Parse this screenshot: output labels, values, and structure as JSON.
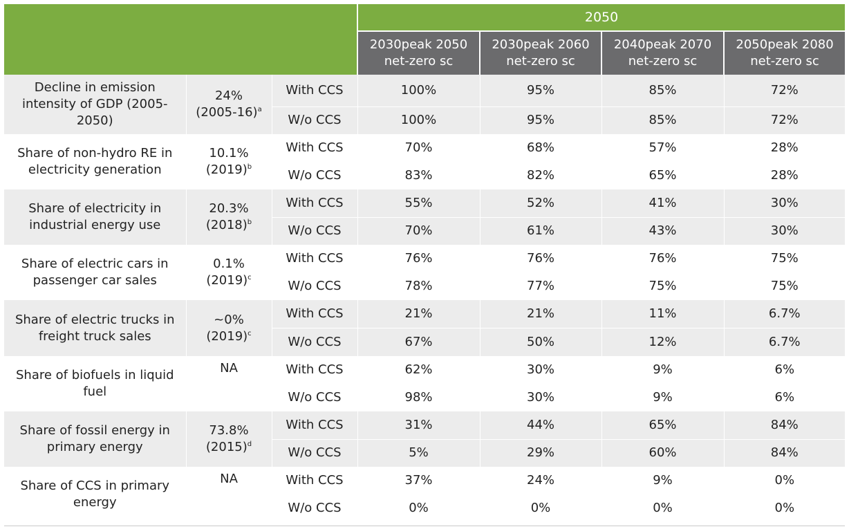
{
  "header": {
    "group_label": "2050",
    "scenarios": [
      {
        "line1": "2030peak 2050",
        "line2": "net-zero sc"
      },
      {
        "line1": "2030peak 2060",
        "line2": "net-zero sc"
      },
      {
        "line1": "2040peak 2070",
        "line2": "net-zero sc"
      },
      {
        "line1": "2050peak 2080",
        "line2": "net-zero sc"
      }
    ]
  },
  "rows": [
    {
      "indicator": "Decline in emission intensity of GDP (2005-2050)",
      "base_value": "24%",
      "base_year": "(2005-16)",
      "base_note": "a",
      "with_label": "With CCS",
      "without_label": "W/o CCS",
      "with_ccs": [
        "100%",
        "95%",
        "85%",
        "72%"
      ],
      "without_ccs": [
        "100%",
        "95%",
        "85%",
        "72%"
      ]
    },
    {
      "indicator": "Share of non-hydro RE in electricity generation",
      "base_value": "10.1%",
      "base_year": "(2019)",
      "base_note": "b",
      "with_label": "With CCS",
      "without_label": "W/o CCS",
      "with_ccs": [
        "70%",
        "68%",
        "57%",
        "28%"
      ],
      "without_ccs": [
        "83%",
        "82%",
        "65%",
        "28%"
      ]
    },
    {
      "indicator": "Share of electricity in industrial energy use",
      "base_value": "20.3%",
      "base_year": "(2018)",
      "base_note": "b",
      "with_label": "With CCS",
      "without_label": "W/o CCS",
      "with_ccs": [
        "55%",
        "52%",
        "41%",
        "30%"
      ],
      "without_ccs": [
        "70%",
        "61%",
        "43%",
        "30%"
      ]
    },
    {
      "indicator": "Share of electric cars in passenger car sales",
      "base_value": "0.1%",
      "base_year": "(2019)",
      "base_note": "c",
      "with_label": "With CCS",
      "without_label": "W/o CCS",
      "with_ccs": [
        "76%",
        "76%",
        "76%",
        "75%"
      ],
      "without_ccs": [
        "78%",
        "77%",
        "75%",
        "75%"
      ]
    },
    {
      "indicator": "Share of electric trucks in freight truck sales",
      "base_value": "~0%",
      "base_year": "(2019)",
      "base_note": "c",
      "with_label": "With CCS",
      "without_label": "W/o CCS",
      "with_ccs": [
        "21%",
        "21%",
        "11%",
        "6.7%"
      ],
      "without_ccs": [
        "67%",
        "50%",
        "12%",
        "6.7%"
      ]
    },
    {
      "indicator": "Share of biofuels in liquid fuel",
      "base_value": "NA",
      "base_year": "",
      "base_note": "",
      "with_label": "With CCS",
      "without_label": "W/o CCS",
      "with_ccs": [
        "62%",
        "30%",
        "9%",
        "6%"
      ],
      "without_ccs": [
        "98%",
        "30%",
        "9%",
        "6%"
      ]
    },
    {
      "indicator": "Share of fossil energy in primary energy",
      "base_value": "73.8%",
      "base_year": "(2015)",
      "base_note": "d",
      "with_label": "With CCS",
      "without_label": "W/o CCS",
      "with_ccs": [
        "31%",
        "44%",
        "65%",
        "84%"
      ],
      "without_ccs": [
        "5%",
        "29%",
        "60%",
        "84%"
      ]
    },
    {
      "indicator": "Share of CCS in primary energy",
      "base_value": "NA",
      "base_year": "",
      "base_note": "",
      "with_label": "With CCS",
      "without_label": "W/o CCS",
      "with_ccs": [
        "37%",
        "24%",
        "9%",
        "0%"
      ],
      "without_ccs": [
        "0%",
        "0%",
        "0%",
        "0%"
      ]
    }
  ]
}
